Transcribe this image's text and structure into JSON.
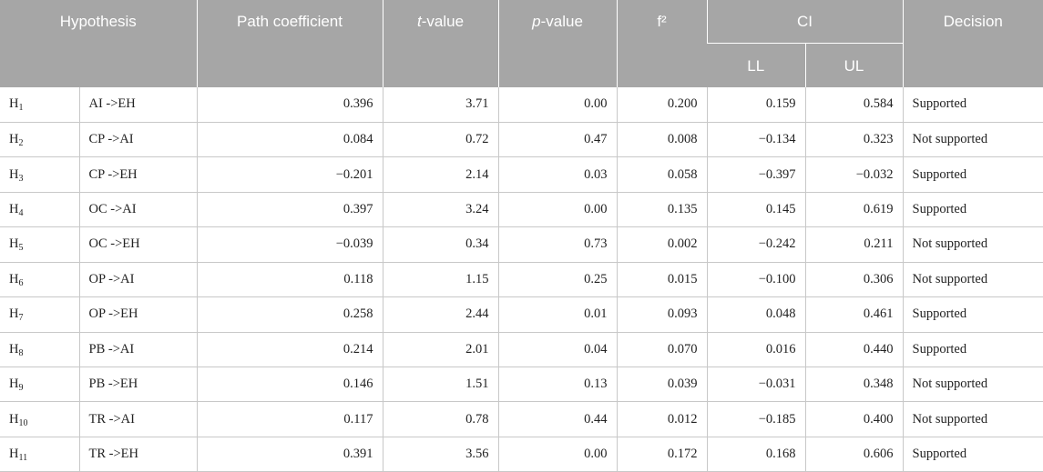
{
  "header": {
    "hypothesis": "Hypothesis",
    "path_coefficient": "Path coefficient",
    "t_value_prefix": "t",
    "t_value_suffix": "-value",
    "p_value_prefix": "p",
    "p_value_suffix": "-value",
    "f2": "f²",
    "ci": "CI",
    "ll": "LL",
    "ul": "UL",
    "decision": "Decision"
  },
  "rows": [
    {
      "h": "H",
      "sub": "1",
      "path": "AI ->EH",
      "coef": "0.396",
      "t": "3.71",
      "p": "0.00",
      "f2": "0.200",
      "ll": "0.159",
      "ul": "0.584",
      "decision": "Supported"
    },
    {
      "h": "H",
      "sub": "2",
      "path": "CP ->AI",
      "coef": "0.084",
      "t": "0.72",
      "p": "0.47",
      "f2": "0.008",
      "ll": "−0.134",
      "ul": "0.323",
      "decision": "Not supported"
    },
    {
      "h": "H",
      "sub": "3",
      "path": "CP ->EH",
      "coef": "−0.201",
      "t": "2.14",
      "p": "0.03",
      "f2": "0.058",
      "ll": "−0.397",
      "ul": "−0.032",
      "decision": "Supported"
    },
    {
      "h": "H",
      "sub": "4",
      "path": "OC ->AI",
      "coef": "0.397",
      "t": "3.24",
      "p": "0.00",
      "f2": "0.135",
      "ll": "0.145",
      "ul": "0.619",
      "decision": "Supported"
    },
    {
      "h": "H",
      "sub": "5",
      "path": "OC ->EH",
      "coef": "−0.039",
      "t": "0.34",
      "p": "0.73",
      "f2": "0.002",
      "ll": "−0.242",
      "ul": "0.211",
      "decision": "Not supported"
    },
    {
      "h": "H",
      "sub": "6",
      "path": "OP ->AI",
      "coef": "0.118",
      "t": "1.15",
      "p": "0.25",
      "f2": "0.015",
      "ll": "−0.100",
      "ul": "0.306",
      "decision": "Not supported"
    },
    {
      "h": "H",
      "sub": "7",
      "path": "OP ->EH",
      "coef": "0.258",
      "t": "2.44",
      "p": "0.01",
      "f2": "0.093",
      "ll": "0.048",
      "ul": "0.461",
      "decision": "Supported"
    },
    {
      "h": "H",
      "sub": "8",
      "path": "PB ->AI",
      "coef": "0.214",
      "t": "2.01",
      "p": "0.04",
      "f2": "0.070",
      "ll": "0.016",
      "ul": "0.440",
      "decision": "Supported"
    },
    {
      "h": "H",
      "sub": "9",
      "path": "PB ->EH",
      "coef": "0.146",
      "t": "1.51",
      "p": "0.13",
      "f2": "0.039",
      "ll": "−0.031",
      "ul": "0.348",
      "decision": "Not supported"
    },
    {
      "h": "H",
      "sub": "10",
      "path": "TR ->AI",
      "coef": "0.117",
      "t": "0.78",
      "p": "0.44",
      "f2": "0.012",
      "ll": "−0.185",
      "ul": "0.400",
      "decision": "Not supported"
    },
    {
      "h": "H",
      "sub": "11",
      "path": "TR ->EH",
      "coef": "0.391",
      "t": "3.56",
      "p": "0.00",
      "f2": "0.172",
      "ll": "0.168",
      "ul": "0.606",
      "decision": "Supported"
    }
  ]
}
